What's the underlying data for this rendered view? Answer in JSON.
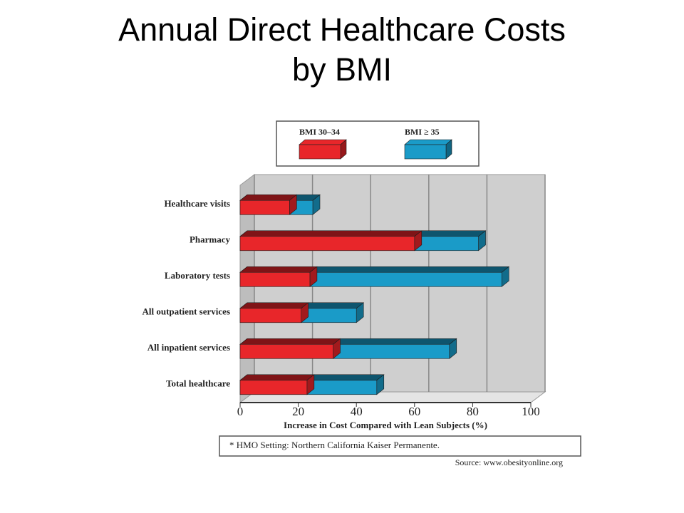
{
  "chart_data": {
    "type": "bar",
    "title": "Annual Direct Healthcare Costs by BMI",
    "categories": [
      "Healthcare visits",
      "Pharmacy",
      "Laboratory tests",
      "All outpatient services",
      "All inpatient services",
      "Total healthcare"
    ],
    "series": [
      {
        "name": "BMI 30–34",
        "color": "#e8262a",
        "values": [
          17,
          60,
          24,
          21,
          32,
          23
        ]
      },
      {
        "name": "BMI ≥ 35",
        "color": "#1a9bc8",
        "values": [
          25,
          82,
          90,
          40,
          72,
          47
        ]
      }
    ],
    "xlim": [
      0,
      100
    ],
    "xticks": [
      0,
      20,
      40,
      60,
      80,
      100
    ],
    "x_label": "Increase in Cost Compared with Lean Subjects (%)",
    "grid": true,
    "note": "* HMO Setting: Northern California Kaiser Permanente.",
    "source": "Source: www.obesityonline.org"
  }
}
